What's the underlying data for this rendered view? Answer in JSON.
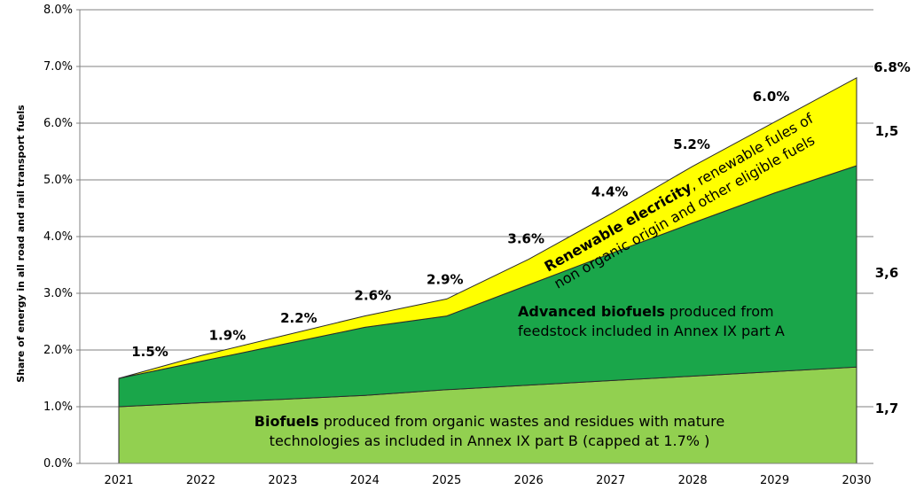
{
  "chart_data": {
    "type": "area",
    "stacked": true,
    "categories": [
      "2021",
      "2022",
      "2023",
      "2024",
      "2025",
      "2026",
      "2027",
      "2028",
      "2029",
      "2030"
    ],
    "series": [
      {
        "key": "biofuels_b",
        "color": "#92D050",
        "values": [
          1.0,
          1.07,
          1.13,
          1.2,
          1.3,
          1.38,
          1.46,
          1.54,
          1.62,
          1.7
        ]
      },
      {
        "key": "advanced",
        "color": "#1AA64A",
        "values": [
          0.5,
          0.73,
          0.97,
          1.2,
          1.3,
          1.77,
          2.24,
          2.7,
          3.15,
          3.55
        ]
      },
      {
        "key": "renewable_elec",
        "color": "#FFFF00",
        "values": [
          0.0,
          0.1,
          0.15,
          0.2,
          0.3,
          0.45,
          0.7,
          1.0,
          1.25,
          1.55
        ]
      }
    ],
    "ylim": [
      0,
      8
    ],
    "yticks": [
      "0.0%",
      "1.0%",
      "2.0%",
      "3.0%",
      "4.0%",
      "5.0%",
      "6.0%",
      "7.0%",
      "8.0%"
    ],
    "ylabel": "Share of energy in all road and rail transport fuels",
    "totals": [
      {
        "text": "1.5%",
        "x": "2021",
        "y": 1.5
      },
      {
        "text": "1.9%",
        "x": "2022",
        "y": 1.9
      },
      {
        "text": "2.2%",
        "x": "2023",
        "y": 2.2
      },
      {
        "text": "2.6%",
        "x": "2024",
        "y": 2.6
      },
      {
        "text": "2.9%",
        "x": "2025",
        "y": 2.9
      },
      {
        "text": "3.6%",
        "x": "2026",
        "y": 3.6
      },
      {
        "text": "4.4%",
        "x": "2027",
        "y": 4.4
      },
      {
        "text": "5.2%",
        "x": "2028",
        "y": 5.2
      },
      {
        "text": "6.0%",
        "x": "2029",
        "y": 6.0
      },
      {
        "text": "6.8%",
        "x": "2030",
        "y": 6.8
      }
    ],
    "right_labels": [
      "1,5",
      "3,6",
      "1,7"
    ],
    "annotations": {
      "biofuels_b": {
        "line1_bold": "Biofuels",
        "line1_rest": " produced from organic wastes and residues with mature",
        "line2": "technologies as included in Annex IX part B (capped at 1.7% )"
      },
      "advanced": {
        "line1_bold": "Advanced biofuels",
        "line1_rest": " produced from",
        "line2": "feedstock included in Annex IX part A"
      },
      "renewable_elec": {
        "line1_bold": "Renewable elecricity",
        "line1_rest": ", renewable fules of",
        "line2": "non organic origin and other eligible  fuels"
      }
    },
    "grid": true
  }
}
